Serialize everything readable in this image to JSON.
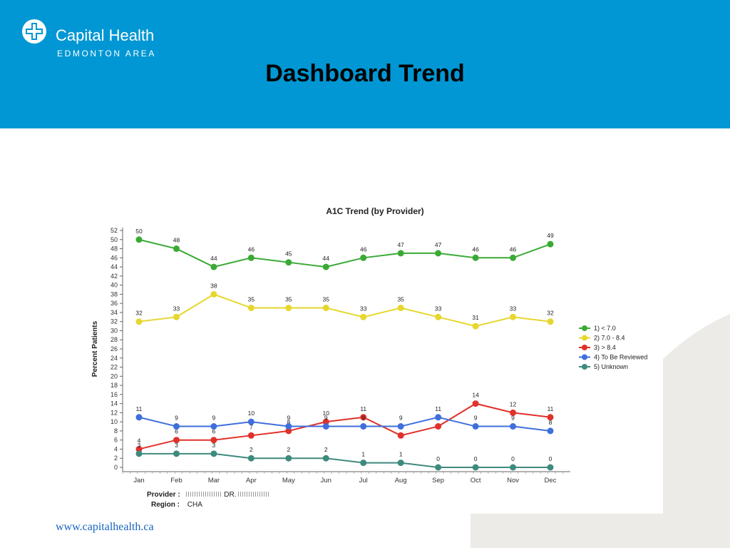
{
  "header": {
    "brand_name": "Capital Health",
    "brand_sub": "EDMONTON AREA",
    "slide_title": "Dashboard Trend",
    "background_color": "#0097d4",
    "logo_icon": "capital-health-cross-logo"
  },
  "footer": {
    "url": "www.capitalhealth.ca"
  },
  "chart_meta": {
    "provider_label": "Provider :",
    "provider_value": "DR.",
    "region_label": "Region :",
    "region_value": "CHA"
  },
  "chart_data": {
    "type": "line",
    "title": "A1C Trend (by Provider)",
    "xlabel": "",
    "ylabel": "Percent Patients",
    "categories": [
      "Jan",
      "Feb",
      "Mar",
      "Apr",
      "May",
      "Jun",
      "Jul",
      "Aug",
      "Sep",
      "Oct",
      "Nov",
      "Dec"
    ],
    "ylim": [
      0,
      52
    ],
    "yticks": [
      0,
      2,
      4,
      6,
      8,
      10,
      12,
      14,
      16,
      18,
      20,
      22,
      24,
      26,
      28,
      30,
      32,
      34,
      36,
      38,
      40,
      42,
      44,
      46,
      48,
      50,
      52
    ],
    "grid": false,
    "legend_position": "right",
    "series": [
      {
        "name": "1) < 7.0",
        "color": "#3aaa35",
        "values": [
          50,
          48,
          44,
          46,
          45,
          44,
          46,
          47,
          47,
          46,
          46,
          49
        ]
      },
      {
        "name": "2) 7.0 - 8.4",
        "color": "#e6d72e",
        "values": [
          32,
          33,
          38,
          35,
          35,
          35,
          33,
          35,
          33,
          31,
          33,
          32
        ]
      },
      {
        "name": "3) > 8.4",
        "color": "#e0312a",
        "values": [
          4,
          6,
          6,
          7,
          8,
          10,
          11,
          7,
          9,
          14,
          12,
          11
        ]
      },
      {
        "name": "4) To Be Reviewed",
        "color": "#3f6fdc",
        "values": [
          11,
          9,
          9,
          10,
          9,
          9,
          9,
          9,
          11,
          9,
          9,
          8
        ]
      },
      {
        "name": "5) Unknown",
        "color": "#3f8a7e",
        "values": [
          3,
          3,
          3,
          2,
          2,
          2,
          1,
          1,
          0,
          0,
          0,
          0
        ]
      }
    ]
  }
}
